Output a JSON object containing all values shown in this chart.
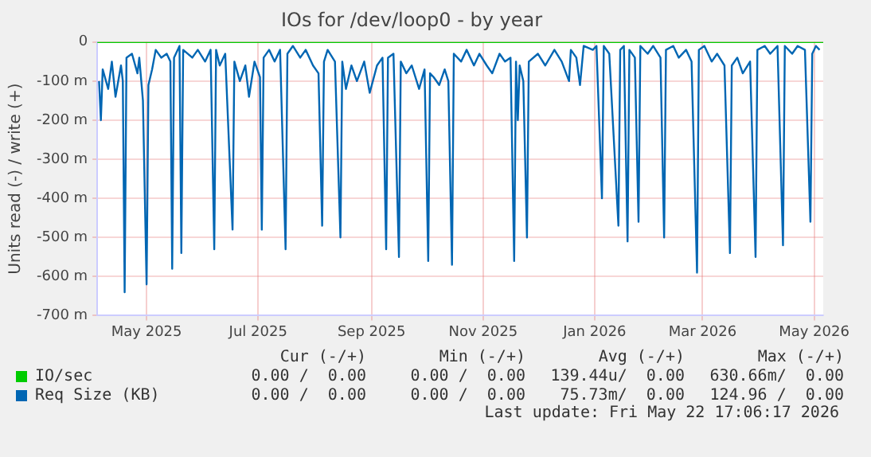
{
  "chart_data": {
    "type": "line",
    "title": "IOs for /dev/loop0 - by year",
    "ylabel": "Units read (-) / write (+)",
    "xlim": [
      "2025-04-19",
      "2026-05-21"
    ],
    "xticks": [
      {
        "value": "2025-05-16",
        "label": "May 2025"
      },
      {
        "value": "2025-07-16",
        "label": "Jul 2025"
      },
      {
        "value": "2025-09-16",
        "label": "Sep 2025"
      },
      {
        "value": "2025-11-16",
        "label": "Nov 2025"
      },
      {
        "value": "2026-01-16",
        "label": "Jan 2026"
      },
      {
        "value": "2026-03-16",
        "label": "Mar 2026"
      },
      {
        "value": "2026-05-16",
        "label": "May 2026"
      }
    ],
    "ylim": [
      -700,
      0
    ],
    "yticks": [
      {
        "value": -700,
        "label": "-700 m"
      },
      {
        "value": -600,
        "label": "-600 m"
      },
      {
        "value": -500,
        "label": "-500 m"
      },
      {
        "value": -400,
        "label": "-400 m"
      },
      {
        "value": -300,
        "label": "-300 m"
      },
      {
        "value": -200,
        "label": "-200 m"
      },
      {
        "value": -100,
        "label": "-100 m"
      },
      0
    ],
    "grid": true,
    "legend": "bottom",
    "marker": "none",
    "line_style": "solid",
    "annotations": [
      "Cur (-/+)",
      "Min (-/+)",
      "Avg (-/+)",
      "Max (-/+)",
      "0.00 /  0.00",
      "0.00 /  0.00",
      "139.44u/  0.00",
      "630.66m/  0.00",
      "0.00 /  0.00",
      "0.00 /  0.00",
      "75.73m/  0.00",
      "124.96 /  0.00",
      "Last update: Fri May 22 17:06:17 2026"
    ],
    "series": [
      {
        "name": "IO/sec",
        "color": "#00cc00",
        "x": [
          "2025-04-19",
          "2026-05-21"
        ],
        "values": [
          0,
          0
        ]
      },
      {
        "name": "Req Size (KB)",
        "color": "#0066b3",
        "x": [
          "2025-04-20",
          "2025-04-21",
          "2025-04-22",
          "2025-04-25",
          "2025-04-27",
          "2025-04-29",
          "2025-05-02",
          "2025-05-03",
          "2025-05-04",
          "2025-05-05",
          "2025-05-08",
          "2025-05-11",
          "2025-05-12",
          "2025-05-14",
          "2025-05-16",
          "2025-05-17",
          "2025-05-19",
          "2025-05-21",
          "2025-05-24",
          "2025-05-27",
          "2025-05-29",
          "2025-05-30",
          "2025-05-31",
          "2025-06-03",
          "2025-06-04",
          "2025-06-05",
          "2025-06-10",
          "2025-06-13",
          "2025-06-17",
          "2025-06-20",
          "2025-06-22",
          "2025-06-23",
          "2025-06-25",
          "2025-06-28",
          "2025-07-02",
          "2025-07-03",
          "2025-07-06",
          "2025-07-09",
          "2025-07-11",
          "2025-07-14",
          "2025-07-17",
          "2025-07-18",
          "2025-07-19",
          "2025-07-22",
          "2025-07-25",
          "2025-07-28",
          "2025-07-31",
          "2025-08-01",
          "2025-08-04",
          "2025-08-08",
          "2025-08-11",
          "2025-08-15",
          "2025-08-18",
          "2025-08-20",
          "2025-08-21",
          "2025-08-23",
          "2025-08-27",
          "2025-08-30",
          "2025-08-31",
          "2025-09-02",
          "2025-09-05",
          "2025-09-08",
          "2025-09-12",
          "2025-09-15",
          "2025-09-19",
          "2025-09-22",
          "2025-09-24",
          "2025-09-25",
          "2025-09-28",
          "2025-10-01",
          "2025-10-02",
          "2025-10-05",
          "2025-10-08",
          "2025-10-12",
          "2025-10-15",
          "2025-10-17",
          "2025-10-18",
          "2025-10-20",
          "2025-10-23",
          "2025-10-26",
          "2025-10-28",
          "2025-10-30",
          "2025-10-31",
          "2025-11-04",
          "2025-11-07",
          "2025-11-11",
          "2025-11-14",
          "2025-11-18",
          "2025-11-21",
          "2025-11-25",
          "2025-11-28",
          "2025-12-01",
          "2025-12-03",
          "2025-12-04",
          "2025-12-05",
          "2025-12-06",
          "2025-12-08",
          "2025-12-10",
          "2025-12-11",
          "2025-12-16",
          "2025-12-20",
          "2025-12-25",
          "2025-12-29",
          "2026-01-02",
          "2026-01-03",
          "2026-01-06",
          "2026-01-08",
          "2026-01-10",
          "2026-01-15",
          "2026-01-17",
          "2026-01-20",
          "2026-01-21",
          "2026-01-24",
          "2026-01-29",
          "2026-01-30",
          "2026-02-01",
          "2026-02-03",
          "2026-02-04",
          "2026-02-07",
          "2026-02-09",
          "2026-02-10",
          "2026-02-14",
          "2026-02-17",
          "2026-02-21",
          "2026-02-23",
          "2026-02-24",
          "2026-02-28",
          "2026-03-03",
          "2026-03-07",
          "2026-03-10",
          "2026-03-13",
          "2026-03-14",
          "2026-03-17",
          "2026-03-21",
          "2026-03-24",
          "2026-03-28",
          "2026-03-31",
          "2026-04-01",
          "2026-04-04",
          "2026-04-07",
          "2026-04-11",
          "2026-04-14",
          "2026-04-15",
          "2026-04-19",
          "2026-04-22",
          "2026-04-26",
          "2026-04-29",
          "2026-04-30",
          "2026-05-04",
          "2026-05-07",
          "2026-05-11",
          "2026-05-14",
          "2026-05-15",
          "2026-05-17",
          "2026-05-19"
        ],
        "values": [
          -100,
          -200,
          -70,
          -120,
          -50,
          -140,
          -60,
          -100,
          -640,
          -40,
          -30,
          -80,
          -40,
          -150,
          -620,
          -110,
          -70,
          -20,
          -40,
          -30,
          -50,
          -580,
          -40,
          -10,
          -540,
          -20,
          -40,
          -20,
          -50,
          -20,
          -530,
          -20,
          -60,
          -30,
          -480,
          -50,
          -100,
          -60,
          -140,
          -50,
          -90,
          -480,
          -40,
          -20,
          -50,
          -20,
          -530,
          -30,
          -10,
          -40,
          -20,
          -60,
          -80,
          -470,
          -50,
          -20,
          -50,
          -500,
          -50,
          -120,
          -60,
          -100,
          -50,
          -130,
          -60,
          -40,
          -530,
          -40,
          -30,
          -550,
          -50,
          -80,
          -60,
          -120,
          -70,
          -560,
          -80,
          -90,
          -110,
          -70,
          -100,
          -570,
          -30,
          -50,
          -20,
          -60,
          -30,
          -60,
          -80,
          -30,
          -50,
          -40,
          -560,
          -50,
          -200,
          -60,
          -100,
          -500,
          -50,
          -30,
          -60,
          -20,
          -50,
          -100,
          -20,
          -40,
          -110,
          -10,
          -20,
          -10,
          -400,
          -10,
          -30,
          -470,
          -20,
          -10,
          -510,
          -20,
          -40,
          -460,
          -10,
          -30,
          -10,
          -40,
          -500,
          -20,
          -10,
          -40,
          -20,
          -50,
          -590,
          -20,
          -10,
          -50,
          -30,
          -60,
          -540,
          -60,
          -40,
          -80,
          -50,
          -550,
          -20,
          -10,
          -30,
          -10,
          -520,
          -10,
          -30,
          -10,
          -20,
          -460,
          -30,
          -10,
          -20
        ]
      }
    ]
  }
}
